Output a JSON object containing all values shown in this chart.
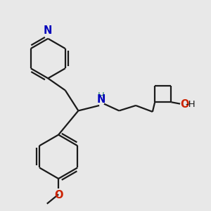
{
  "bg_color": "#e8e8e8",
  "bond_color": "#1a1a1a",
  "N_color": "#0000bb",
  "O_color": "#cc2200",
  "H_color": "#2a8a6a",
  "line_width": 1.6,
  "font_size_atom": 9.5,
  "fig_w": 3.0,
  "fig_h": 3.0,
  "dpi": 100,
  "xlim": [
    0,
    1
  ],
  "ylim": [
    0,
    1
  ]
}
